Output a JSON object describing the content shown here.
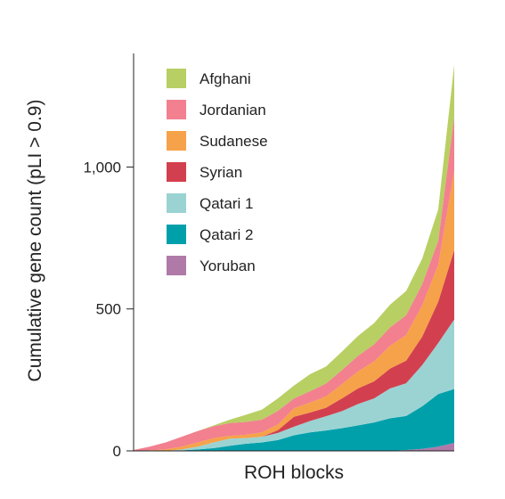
{
  "chart_data": {
    "type": "area",
    "stacked": true,
    "xlabel": "ROH blocks",
    "ylabel": "Cumulative gene count (pLI > 0.9)",
    "ylim": [
      0,
      1400
    ],
    "yticks": [
      0,
      500,
      1000
    ],
    "ytick_labels": [
      "0",
      "500",
      "1,000"
    ],
    "grid": false,
    "legend_position": "top-left",
    "x": [
      0,
      5,
      10,
      15,
      20,
      25,
      30,
      35,
      40,
      45,
      50,
      55,
      60,
      65,
      70,
      75,
      80,
      85,
      90,
      95,
      100
    ],
    "series": [
      {
        "name": "Yoruban",
        "color": "#b07aa8",
        "values": [
          0,
          0,
          0,
          0,
          0,
          0,
          0,
          0,
          0,
          0,
          0,
          0,
          0,
          0,
          0,
          0,
          0,
          3,
          7,
          15,
          28
        ]
      },
      {
        "name": "Qatari 2",
        "color": "#00a0ab",
        "values": [
          0,
          0,
          0,
          2,
          5,
          10,
          18,
          25,
          30,
          38,
          55,
          65,
          72,
          80,
          90,
          100,
          115,
          120,
          150,
          185,
          190
        ]
      },
      {
        "name": "Qatari 1",
        "color": "#9bd3d3",
        "values": [
          0,
          0,
          0,
          3,
          10,
          20,
          25,
          20,
          20,
          25,
          30,
          40,
          50,
          60,
          75,
          85,
          105,
          115,
          145,
          180,
          245
        ]
      },
      {
        "name": "Syrian",
        "color": "#d2404f",
        "values": [
          0,
          0,
          0,
          0,
          0,
          0,
          0,
          0,
          0,
          10,
          35,
          30,
          30,
          45,
          55,
          60,
          70,
          80,
          100,
          145,
          245
        ]
      },
      {
        "name": "Sudanese",
        "color": "#f6a24a",
        "values": [
          0,
          2,
          5,
          10,
          15,
          15,
          10,
          12,
          15,
          20,
          30,
          35,
          40,
          50,
          60,
          70,
          80,
          90,
          110,
          130,
          280
        ]
      },
      {
        "name": "Jordanian",
        "color": "#f2808f",
        "values": [
          3,
          13,
          25,
          35,
          40,
          42,
          45,
          45,
          45,
          48,
          35,
          40,
          45,
          50,
          55,
          60,
          65,
          70,
          75,
          85,
          190
        ]
      },
      {
        "name": "Afghani",
        "color": "#b8cf63",
        "values": [
          0,
          0,
          0,
          0,
          0,
          3,
          12,
          25,
          35,
          44,
          45,
          60,
          60,
          65,
          70,
          75,
          80,
          85,
          90,
          110,
          182
        ]
      }
    ],
    "legend_order": [
      "Afghani",
      "Jordanian",
      "Sudanese",
      "Syrian",
      "Qatari 1",
      "Qatari 2",
      "Yoruban"
    ]
  }
}
